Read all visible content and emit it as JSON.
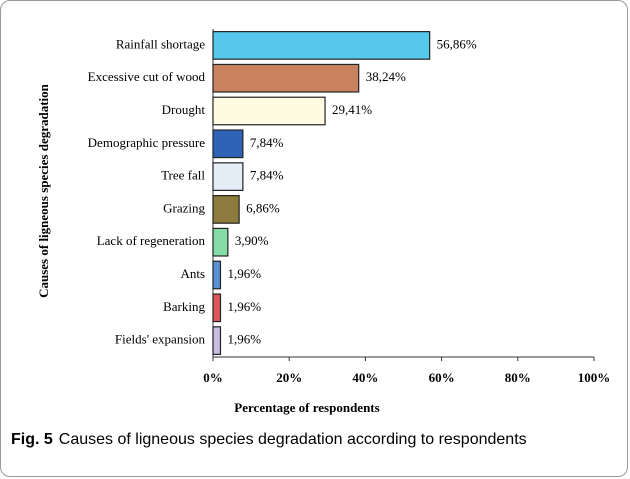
{
  "chart_data": {
    "type": "bar",
    "orientation": "horizontal",
    "categories": [
      "Rainfall shortage",
      "Excessive cut of  wood",
      "Drought",
      "Demographic pressure",
      "Tree fall",
      "Grazing",
      "Lack of regeneration",
      "Ants",
      "Barking",
      "Fields' expansion"
    ],
    "values": [
      56.86,
      38.24,
      29.41,
      7.84,
      7.84,
      6.86,
      3.9,
      1.96,
      1.96,
      1.96
    ],
    "value_labels": [
      "56,86%",
      "38,24%",
      "29,41%",
      "7,84%",
      "7,84%",
      "6,86%",
      "3,90%",
      "1,96%",
      "1,96%",
      "1,96%"
    ],
    "colors": [
      "#55c8ec",
      "#c9825f",
      "#fffbe0",
      "#2f63b8",
      "#e4ecf6",
      "#8c7b3c",
      "#86dca6",
      "#5b8fd6",
      "#e05555",
      "#cbbde3"
    ],
    "xlim": [
      0,
      100
    ],
    "xticks": [
      {
        "value": 0,
        "label": "0%"
      },
      {
        "value": 20,
        "label": "20%"
      },
      {
        "value": 40,
        "label": "40%"
      },
      {
        "value": 60,
        "label": "60%"
      },
      {
        "value": 80,
        "label": "80%"
      },
      {
        "value": 100,
        "label": "100%"
      }
    ],
    "xlabel": "Percentage of respondents",
    "ylabel": "Causes of ligneous species degradation"
  },
  "caption": {
    "label": "Fig. 5",
    "text": "Causes of ligneous species degradation according to respondents"
  }
}
